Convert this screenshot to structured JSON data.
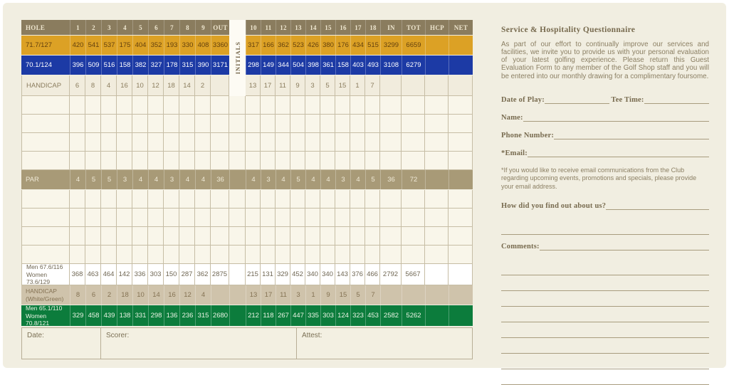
{
  "colors": {
    "card_bg": "#f1eee1",
    "header_brown": "#8a7c5e",
    "gold_tee": "#dca125",
    "blue_tee": "#1c3aa5",
    "par_tan": "#a89a77",
    "green_tee": "#0c7c3c",
    "handicap_tan": "#cfc3ab",
    "text_brown": "#776a4e"
  },
  "scorecard": {
    "initials_label": "INITIALS",
    "columns": [
      "HOLE",
      "1",
      "2",
      "3",
      "4",
      "5",
      "6",
      "7",
      "8",
      "9",
      "OUT",
      "",
      "10",
      "11",
      "12",
      "13",
      "14",
      "15",
      "16",
      "17",
      "18",
      "IN",
      "TOT",
      "HCP",
      "NET"
    ],
    "rows": [
      {
        "id": "gold-tees-row",
        "type": "gold",
        "cells": [
          "71.7/127",
          "420",
          "541",
          "537",
          "175",
          "404",
          "352",
          "193",
          "330",
          "408",
          "3360",
          "",
          "317",
          "166",
          "362",
          "523",
          "426",
          "380",
          "176",
          "434",
          "515",
          "3299",
          "6659",
          "",
          ""
        ]
      },
      {
        "id": "blue-tees-row",
        "type": "blue",
        "cells": [
          "70.1/124",
          "396",
          "509",
          "516",
          "158",
          "382",
          "327",
          "178",
          "315",
          "390",
          "3171",
          "",
          "298",
          "149",
          "344",
          "504",
          "398",
          "361",
          "158",
          "403",
          "493",
          "3108",
          "6279",
          "",
          ""
        ]
      },
      {
        "id": "handicap-row",
        "type": "handicap",
        "cells": [
          "HANDICAP",
          "6",
          "8",
          "4",
          "16",
          "10",
          "12",
          "18",
          "14",
          "2",
          "",
          "",
          "13",
          "17",
          "11",
          "9",
          "3",
          "5",
          "15",
          "1",
          "7",
          "",
          "",
          "",
          ""
        ]
      },
      {
        "id": "player-row-1",
        "type": "empty"
      },
      {
        "id": "player-row-2",
        "type": "empty"
      },
      {
        "id": "player-row-3",
        "type": "empty"
      },
      {
        "id": "player-row-4",
        "type": "empty"
      },
      {
        "id": "par-row",
        "type": "par",
        "cells": [
          "PAR",
          "4",
          "5",
          "5",
          "3",
          "4",
          "4",
          "3",
          "4",
          "4",
          "36",
          "",
          "4",
          "3",
          "4",
          "5",
          "4",
          "4",
          "3",
          "4",
          "5",
          "36",
          "72",
          "",
          ""
        ]
      },
      {
        "id": "player-row-5",
        "type": "empty"
      },
      {
        "id": "player-row-6",
        "type": "empty"
      },
      {
        "id": "player-row-7",
        "type": "empty"
      },
      {
        "id": "player-row-8",
        "type": "empty"
      },
      {
        "id": "white-tees-row",
        "type": "white",
        "cells": [
          [
            "Men 67.6/116",
            "Women 73.6/129"
          ],
          "368",
          "463",
          "464",
          "142",
          "336",
          "303",
          "150",
          "287",
          "362",
          "2875",
          "",
          "215",
          "131",
          "329",
          "452",
          "340",
          "340",
          "143",
          "376",
          "466",
          "2792",
          "5667",
          "",
          ""
        ]
      },
      {
        "id": "handicap-white-green-row",
        "type": "handicap2",
        "cells": [
          [
            "HANDICAP",
            "(White/Green)"
          ],
          "8",
          "6",
          "2",
          "18",
          "10",
          "14",
          "16",
          "12",
          "4",
          "",
          "",
          "13",
          "17",
          "11",
          "3",
          "1",
          "9",
          "15",
          "5",
          "7",
          "",
          "",
          "",
          ""
        ]
      },
      {
        "id": "green-tees-row",
        "type": "green",
        "cells": [
          [
            "Men 65.1/110",
            "Women 70.8/121"
          ],
          "329",
          "458",
          "439",
          "138",
          "331",
          "298",
          "136",
          "236",
          "315",
          "2680",
          "",
          "212",
          "118",
          "267",
          "447",
          "335",
          "303",
          "124",
          "323",
          "453",
          "2582",
          "5262",
          "",
          ""
        ]
      }
    ],
    "footer": {
      "date_label": "Date:",
      "scorer_label": "Scorer:",
      "attest_label": "Attest:"
    }
  },
  "questionnaire": {
    "title": "Service & Hospitality Questionnaire",
    "intro": "As part of our effort to continually improve our services and facilities, we invite you to provide us with your personal evaluation of your latest golfing experience. Please return this Guest Evaluation Form to any member of the Golf Shop staff and you will be entered into our monthly drawing for a complimentary foursome.",
    "date_of_play_label": "Date of Play:",
    "tee_time_label": "Tee Time:",
    "name_label": "Name:",
    "phone_label": "Phone Number:",
    "email_label": "*Email:",
    "email_note": "*If you would like to receive email communications from the Club regarding upcoming events, promotions and specials, please provide your email address.",
    "find_out_label": "How did you find out about us?",
    "comments_label": "Comments:",
    "blank_lines_after_find_out": 1,
    "blank_lines_after_comments": 8
  }
}
